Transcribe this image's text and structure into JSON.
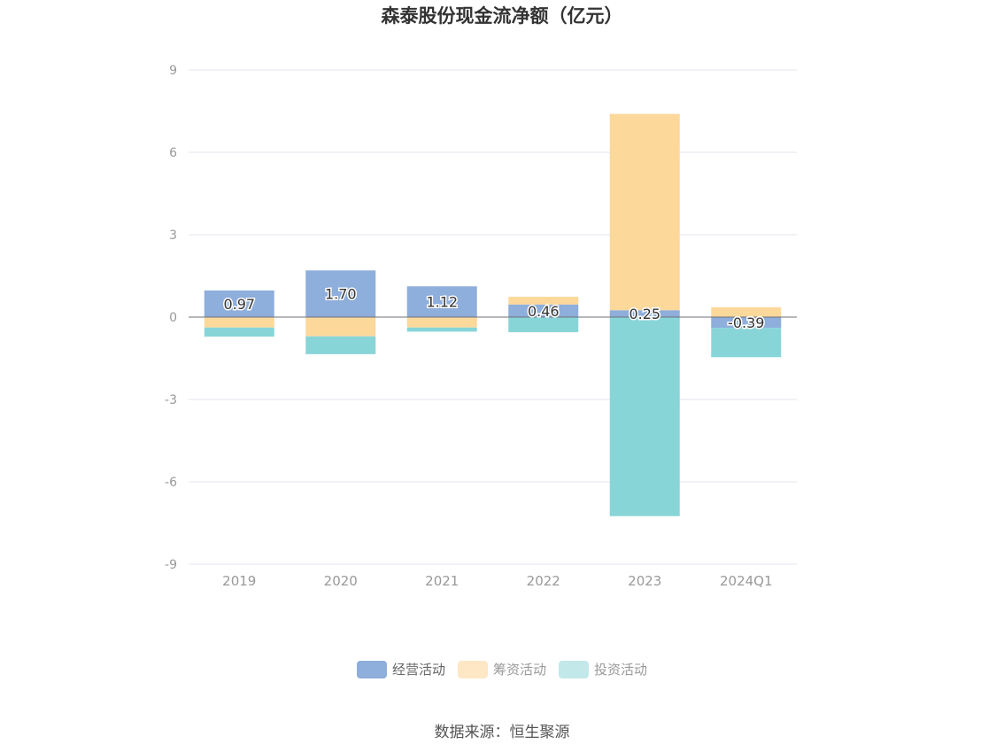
{
  "chart_data": {
    "type": "bar",
    "stacked": true,
    "title": "森泰股份现金流净额（亿元）",
    "categories": [
      "2019",
      "2020",
      "2021",
      "2022",
      "2023",
      "2024Q1"
    ],
    "series": [
      {
        "name": "经营活动",
        "color": "#8eaedb",
        "values": [
          0.97,
          1.7,
          1.12,
          0.46,
          0.25,
          -0.39
        ]
      },
      {
        "name": "筹资活动",
        "color": "#fdd89b",
        "values": [
          -0.38,
          -0.7,
          -0.38,
          0.28,
          7.15,
          0.36
        ]
      },
      {
        "name": "投资活动",
        "color": "#88d5d8",
        "values": [
          -0.33,
          -0.65,
          -0.15,
          -0.55,
          -7.25,
          -1.07
        ]
      }
    ],
    "data_labels": [
      "0.97",
      "1.70",
      "1.12",
      "0.46",
      "0.25",
      "-0.39"
    ],
    "yticks": [
      9,
      6,
      3,
      0,
      -3,
      -6,
      -9
    ],
    "ylim": [
      -9,
      9
    ],
    "grid": true,
    "legend_position": "bottom",
    "legend_colors": [
      "#8eaedb",
      "#fde7c5",
      "#c2e8ea"
    ],
    "source": "数据来源：恒生聚源"
  }
}
